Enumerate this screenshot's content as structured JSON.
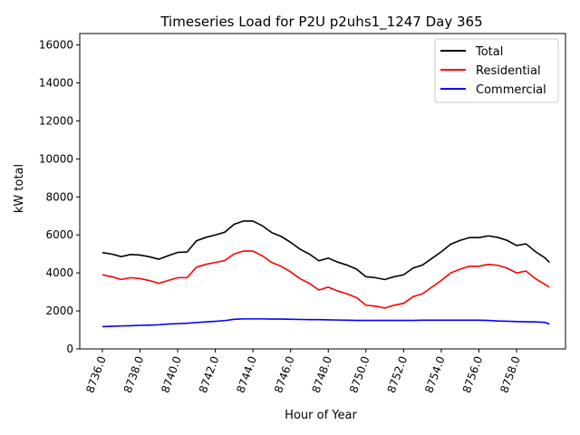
{
  "chart_data": {
    "type": "line",
    "title": "Timeseries Load for P2U p2uhs1_1247  Day 365",
    "xlabel": "Hour of Year",
    "ylabel": "kW total",
    "xlim": [
      8734.8,
      8760.6
    ],
    "ylim": [
      0,
      16600
    ],
    "xticks": [
      "8736.0",
      "8738.0",
      "8740.0",
      "8742.0",
      "8744.0",
      "8746.0",
      "8748.0",
      "8750.0",
      "8752.0",
      "8754.0",
      "8756.0",
      "8758.0"
    ],
    "yticks": [
      "0",
      "2000",
      "4000",
      "6000",
      "8000",
      "10000",
      "12000",
      "14000",
      "16000"
    ],
    "legend_position": "top-right",
    "x": [
      8736,
      8736.5,
      8737,
      8737.5,
      8738,
      8738.5,
      8739,
      8739.5,
      8740,
      8740.5,
      8741,
      8741.5,
      8742,
      8742.5,
      8743,
      8743.5,
      8744,
      8744.5,
      8745,
      8745.5,
      8746,
      8746.5,
      8747,
      8747.5,
      8748,
      8748.5,
      8749,
      8749.5,
      8750,
      8750.5,
      8751,
      8751.5,
      8752,
      8752.5,
      8753,
      8753.5,
      8754,
      8754.5,
      8755,
      8755.5,
      8756,
      8756.5,
      8757,
      8757.5,
      8758,
      8758.5,
      8759,
      8759.5,
      8759.75
    ],
    "series": [
      {
        "name": "Total",
        "color": "#000000",
        "values": [
          5070,
          4990,
          4860,
          4970,
          4940,
          4850,
          4720,
          4910,
          5080,
          5100,
          5690,
          5870,
          6000,
          6140,
          6560,
          6730,
          6730,
          6480,
          6120,
          5920,
          5610,
          5250,
          4990,
          4640,
          4780,
          4570,
          4410,
          4200,
          3800,
          3750,
          3650,
          3800,
          3900,
          4250,
          4410,
          4760,
          5110,
          5510,
          5710,
          5860,
          5860,
          5950,
          5870,
          5710,
          5440,
          5530,
          5120,
          4800,
          4550
        ]
      },
      {
        "name": "Residential",
        "color": "#ff0000",
        "values": [
          3900,
          3800,
          3650,
          3750,
          3700,
          3600,
          3450,
          3600,
          3750,
          3750,
          4300,
          4450,
          4550,
          4650,
          5000,
          5150,
          5150,
          4900,
          4550,
          4350,
          4050,
          3700,
          3450,
          3100,
          3250,
          3050,
          2900,
          2700,
          2300,
          2250,
          2150,
          2300,
          2400,
          2750,
          2900,
          3250,
          3600,
          4000,
          4200,
          4350,
          4350,
          4450,
          4400,
          4250,
          4000,
          4100,
          3700,
          3400,
          3250
        ]
      },
      {
        "name": "Commercial",
        "color": "#0000ff",
        "values": [
          1170,
          1190,
          1210,
          1220,
          1240,
          1250,
          1270,
          1310,
          1330,
          1350,
          1390,
          1420,
          1450,
          1490,
          1560,
          1580,
          1580,
          1580,
          1570,
          1570,
          1560,
          1550,
          1540,
          1540,
          1530,
          1520,
          1510,
          1500,
          1500,
          1500,
          1500,
          1500,
          1500,
          1500,
          1510,
          1510,
          1510,
          1510,
          1510,
          1510,
          1510,
          1500,
          1470,
          1460,
          1440,
          1430,
          1420,
          1400,
          1300
        ]
      }
    ]
  }
}
